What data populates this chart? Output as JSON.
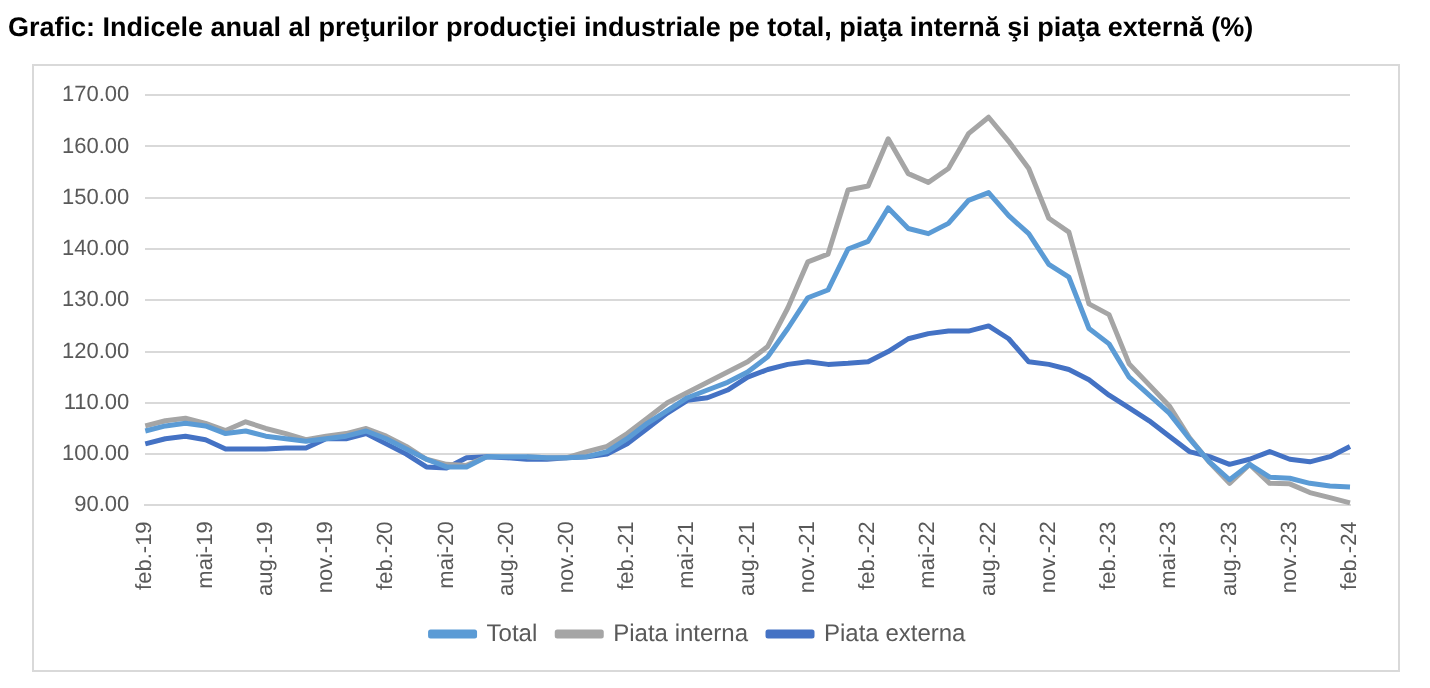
{
  "chart_data": {
    "type": "line",
    "title": "Grafic: Indicele anual al preţurilor producţiei industriale pe total, piaţa internă şi piaţa externă (%)",
    "categories": [
      "feb.-19",
      null,
      null,
      "mai-19",
      null,
      null,
      "aug.-19",
      null,
      null,
      "nov.-19",
      null,
      null,
      "feb.-20",
      null,
      null,
      "mai-20",
      null,
      null,
      "aug.-20",
      null,
      null,
      "nov.-20",
      null,
      null,
      "feb.-21",
      null,
      null,
      "mai-21",
      null,
      null,
      "aug.-21",
      null,
      null,
      "nov.-21",
      null,
      null,
      "feb.-22",
      null,
      null,
      "mai-22",
      null,
      null,
      "aug.-22",
      null,
      null,
      "nov.-22",
      null,
      null,
      "feb.-23",
      null,
      null,
      "mai-23",
      null,
      null,
      "aug.-23",
      null,
      null,
      "nov.-23",
      null,
      null,
      "feb.-24"
    ],
    "series": [
      {
        "name": "Total",
        "color": "#5b9bd5",
        "values": [
          104.5,
          105.5,
          106,
          105.5,
          104,
          104.5,
          103.5,
          103,
          102.5,
          103,
          103.5,
          104.5,
          103,
          101,
          99,
          97.5,
          97.5,
          99.5,
          99.5,
          99.5,
          99.3,
          99.3,
          99.5,
          100.5,
          103,
          106,
          108.5,
          111,
          112.5,
          114,
          116,
          119,
          124.5,
          130.5,
          132,
          140,
          141.5,
          148,
          144,
          143,
          145,
          149.5,
          151,
          146.5,
          143,
          137,
          134.5,
          124.5,
          121.5,
          115,
          111.5,
          108,
          103,
          98.5,
          95,
          98,
          95.5,
          95.3,
          94.3,
          93.8,
          93.6
        ]
      },
      {
        "name": "Piata interna",
        "color": "#a5a5a5",
        "values": [
          105.5,
          106.5,
          107,
          106,
          104.6,
          106.3,
          105,
          104,
          102.8,
          103.5,
          104,
          105,
          103.5,
          101.5,
          99,
          98,
          97.8,
          99.5,
          null,
          99.5,
          99.3,
          99.3,
          100.5,
          101.5,
          104,
          107,
          110,
          112,
          114,
          116,
          118,
          121,
          128.5,
          137.5,
          139,
          151.5,
          152.3,
          161.5,
          154.7,
          153,
          155.7,
          162.5,
          165.7,
          161,
          155.7,
          146,
          143.3,
          129.3,
          127.2,
          117.6,
          113.5,
          109.4,
          103.2,
          98.4,
          94.3,
          98,
          94.3,
          94.2,
          92.5,
          91.5,
          90.5
        ]
      },
      {
        "name": "Piata externa",
        "color": "#4472c4",
        "values": [
          102,
          103,
          103.5,
          102.8,
          101,
          101,
          101,
          101.2,
          101.2,
          103,
          103,
          104,
          102,
          100,
          97.5,
          97.3,
          99.3,
          99.5,
          99.3,
          99,
          99,
          99.3,
          99.5,
          100,
          102,
          105,
          108,
          110.5,
          111,
          112.5,
          115,
          116.5,
          117.5,
          118,
          117.5,
          117.7,
          118,
          120,
          122.5,
          123.5,
          124,
          124,
          125,
          122.5,
          118,
          117.5,
          116.5,
          114.5,
          111.5,
          109,
          106.5,
          103.5,
          100.5,
          99.5,
          98,
          99,
          100.5,
          99,
          98.5,
          99.5,
          101.5
        ]
      }
    ],
    "ylim": [
      90,
      170
    ],
    "yticks": [
      {
        "value": 90,
        "label": "90.00"
      },
      {
        "value": 100,
        "label": "100.00"
      },
      {
        "value": 110,
        "label": "110.00"
      },
      {
        "value": 120,
        "label": "120.00"
      },
      {
        "value": 130,
        "label": "130.00"
      },
      {
        "value": 140,
        "label": "140.00"
      },
      {
        "value": 150,
        "label": "150.00"
      },
      {
        "value": 160,
        "label": "160.00"
      },
      {
        "value": 170,
        "label": "170.00"
      }
    ],
    "grid": "y",
    "legend": "bottom",
    "marker": "none",
    "line_style": "solid"
  }
}
